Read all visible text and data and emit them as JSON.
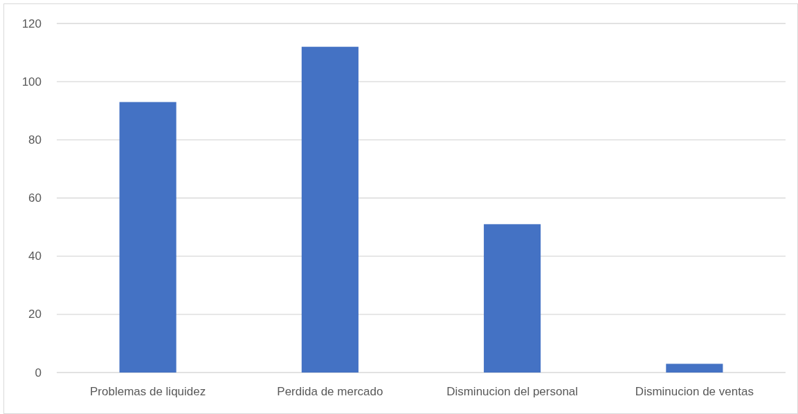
{
  "chart_data": {
    "type": "bar",
    "categories": [
      "Problemas de liquidez",
      "Perdida de mercado",
      "Disminucion del personal",
      "Disminucion de ventas"
    ],
    "values": [
      93,
      112,
      51,
      3
    ],
    "color": "#4472c4",
    "ylim": [
      0,
      120
    ],
    "yticks": [
      0,
      20,
      40,
      60,
      80,
      100,
      120
    ],
    "grid": "y"
  }
}
